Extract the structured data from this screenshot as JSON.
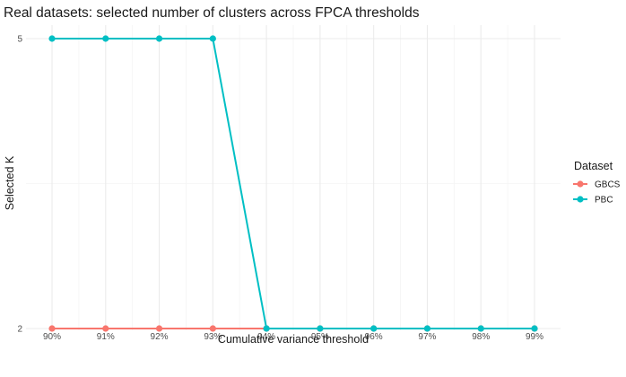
{
  "chart_data": {
    "type": "line",
    "title": "Real datasets: selected number of clusters across FPCA thresholds",
    "xlabel": "Cumulative variance threshold",
    "ylabel": "Selected K",
    "categories": [
      "90%",
      "91%",
      "92%",
      "93%",
      "94%",
      "95%",
      "96%",
      "97%",
      "98%",
      "99%"
    ],
    "yticks": [
      2,
      5
    ],
    "ylim": [
      2,
      5
    ],
    "grid": true,
    "legend": {
      "title": "Dataset",
      "position": "right"
    },
    "series": [
      {
        "name": "GBCS",
        "color": "#F8766D",
        "values": [
          2,
          2,
          2,
          2,
          2,
          2,
          2,
          2,
          2,
          2
        ]
      },
      {
        "name": "PBC",
        "color": "#00BFC4",
        "values": [
          5,
          5,
          5,
          5,
          2,
          2,
          2,
          2,
          2,
          2
        ]
      }
    ]
  }
}
